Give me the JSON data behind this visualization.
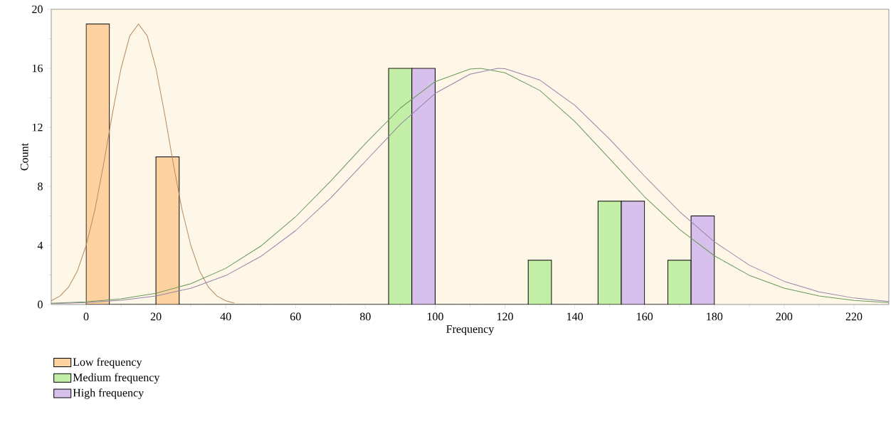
{
  "chart_data": {
    "type": "histogram",
    "xlabel": "Frequency",
    "ylabel": "Count",
    "bins": [
      0,
      20,
      40,
      60,
      80,
      100,
      120,
      140,
      160,
      180
    ],
    "series": [
      {
        "name": "Low frequency",
        "color": "#fdd2a0",
        "values": [
          19,
          10,
          0,
          0,
          0,
          0,
          0,
          0,
          0
        ]
      },
      {
        "name": "Medium frequency",
        "color": "#c2eea6",
        "values": [
          0,
          0,
          0,
          0,
          16,
          0,
          3,
          7,
          3
        ]
      },
      {
        "name": "High frequency",
        "color": "#d8c0ec",
        "values": [
          0,
          0,
          0,
          0,
          16,
          0,
          0,
          7,
          6
        ]
      },
      {
        "type": "line",
        "color": "#b58a60",
        "x": [
          -10,
          -7.5,
          -5,
          -2.5,
          0,
          2.5,
          5,
          7.5,
          10,
          12.5,
          15,
          17.5,
          20,
          22.5,
          25,
          27.5,
          30,
          32.5,
          35,
          37.5,
          40,
          42.5
        ],
        "values": [
          0.25,
          0.57,
          1.19,
          2.28,
          4.0,
          6.4,
          9.5,
          12.9,
          16.0,
          18.2,
          19,
          18.2,
          16.0,
          12.9,
          9.5,
          6.4,
          4.0,
          2.28,
          1.19,
          0.57,
          0.25,
          0.1
        ]
      },
      {
        "type": "line",
        "color": "#6a9a5c",
        "x": [
          -10,
          0,
          10,
          20,
          30,
          40,
          50,
          60,
          70,
          80,
          90,
          100,
          110,
          113,
          120,
          130,
          140,
          150,
          160,
          170,
          180,
          190,
          200,
          210,
          220,
          230
        ],
        "values": [
          0.08,
          0.18,
          0.38,
          0.76,
          1.41,
          2.45,
          3.95,
          5.94,
          8.34,
          10.9,
          13.3,
          15.1,
          15.95,
          16,
          15.7,
          14.5,
          12.4,
          9.87,
          7.3,
          5.09,
          3.3,
          1.98,
          1.11,
          0.58,
          0.28,
          0.13
        ]
      },
      {
        "type": "line",
        "color": "#9485a8",
        "x": [
          -10,
          0,
          10,
          20,
          30,
          40,
          50,
          60,
          70,
          80,
          90,
          100,
          110,
          118,
          120,
          130,
          140,
          150,
          160,
          170,
          180,
          190,
          200,
          210,
          220,
          230
        ],
        "values": [
          0.06,
          0.13,
          0.29,
          0.58,
          1.1,
          1.96,
          3.25,
          5.0,
          7.2,
          9.7,
          12.2,
          14.3,
          15.6,
          16,
          15.98,
          15.2,
          13.5,
          11.2,
          8.7,
          6.3,
          4.25,
          2.67,
          1.57,
          0.86,
          0.44,
          0.21
        ]
      }
    ],
    "xlim": [
      -10,
      230
    ],
    "xticks": [
      0,
      20,
      40,
      60,
      80,
      100,
      120,
      140,
      160,
      180,
      200,
      220
    ],
    "ylim": [
      0,
      20
    ],
    "yticks": [
      0,
      4,
      8,
      12,
      16,
      20
    ],
    "grid": false,
    "legend": "bottom left",
    "marker": "none",
    "line_style": "solid"
  }
}
